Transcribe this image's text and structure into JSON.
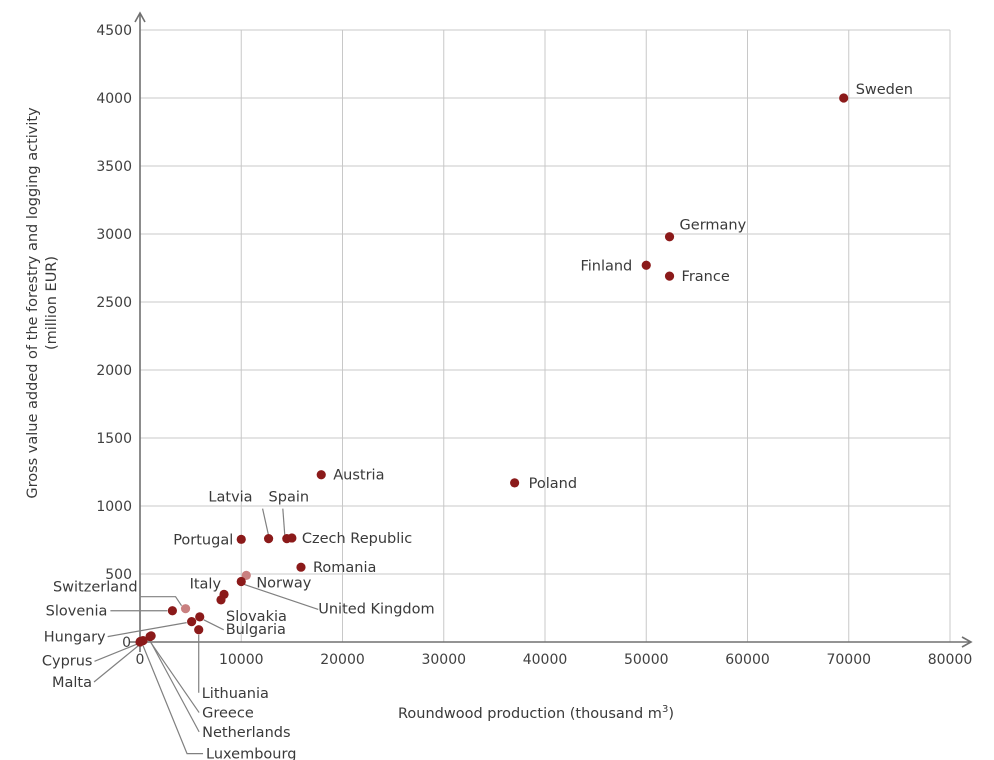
{
  "chart_data": {
    "type": "scatter",
    "xlabel": "Roundwood production (thousand m",
    "xlabel_superscript": "3",
    "xlabel_suffix": ")",
    "ylabel_line1": "Gross value added of the forestry and logging activity",
    "ylabel_line2": "(million EUR)",
    "xlim": [
      0,
      80000
    ],
    "ylim": [
      0,
      4500
    ],
    "x_ticks": [
      0,
      10000,
      20000,
      30000,
      40000,
      50000,
      60000,
      70000,
      80000
    ],
    "x_tick_labels": [
      "0",
      "10000",
      "20000",
      "30000",
      "40000",
      "50000",
      "60000",
      "70000",
      "80000"
    ],
    "y_ticks": [
      500,
      1000,
      1500,
      2000,
      2500,
      3000,
      3500,
      4000,
      4500
    ],
    "y_tick_labels": [
      "500",
      "1000",
      "1500",
      "2000",
      "2500",
      "3000",
      "3500",
      "4000",
      "4500"
    ],
    "origin_label": "0",
    "grid": true,
    "colors": {
      "point": "#8b1a1a",
      "point_highlight": "#c98080",
      "grid": "#c8c8c8",
      "axis": "#707070"
    },
    "points": [
      {
        "label": "Sweden",
        "x": 69500,
        "y": 4000
      },
      {
        "label": "Germany",
        "x": 52300,
        "y": 2980
      },
      {
        "label": "Finland",
        "x": 50000,
        "y": 2770
      },
      {
        "label": "France",
        "x": 52300,
        "y": 2690
      },
      {
        "label": "Poland",
        "x": 37000,
        "y": 1170
      },
      {
        "label": "Austria",
        "x": 17900,
        "y": 1230
      },
      {
        "label": "Latvia",
        "x": 12700,
        "y": 760
      },
      {
        "label": "Spain",
        "x": 14500,
        "y": 760
      },
      {
        "label": "Czech Republic",
        "x": 15000,
        "y": 765
      },
      {
        "label": "Portugal",
        "x": 10000,
        "y": 755
      },
      {
        "label": "Romania",
        "x": 15900,
        "y": 550
      },
      {
        "label": "Norway",
        "x": 10500,
        "y": 490,
        "highlight": true
      },
      {
        "label": "United Kingdom",
        "x": 10000,
        "y": 445
      },
      {
        "label": "Italy",
        "x": 8300,
        "y": 350
      },
      {
        "label": "Slovakia",
        "x": 8000,
        "y": 310
      },
      {
        "label": "Switzerland",
        "x": 4500,
        "y": 245,
        "highlight": true
      },
      {
        "label": "Slovenia",
        "x": 3200,
        "y": 230
      },
      {
        "label": "Bulgaria",
        "x": 5900,
        "y": 185
      },
      {
        "label": "Hungary",
        "x": 5100,
        "y": 150
      },
      {
        "label": "Lithuania",
        "x": 5800,
        "y": 90
      },
      {
        "label": "Greece",
        "x": 1000,
        "y": 40
      },
      {
        "label": "Netherlands",
        "x": 1100,
        "y": 45
      },
      {
        "label": "Luxembourg",
        "x": 300,
        "y": 10
      },
      {
        "label": "Cyprus",
        "x": 50,
        "y": 5
      },
      {
        "label": "Malta",
        "x": 0,
        "y": 0
      }
    ]
  }
}
